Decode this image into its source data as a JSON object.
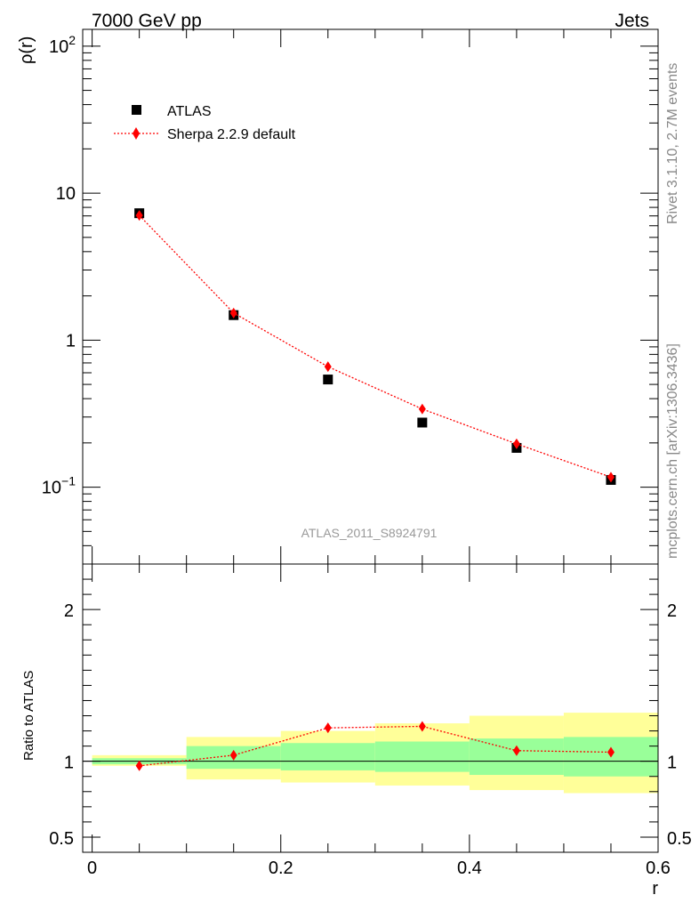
{
  "header": {
    "left_title": "7000 GeV pp",
    "right_title": "Jets",
    "analysis_label": "ATLAS_2011_S8924791",
    "side_label_top": "Rivet 3.1.10,  2.7M events",
    "side_label_bottom": "mcplots.cern.ch [arXiv:1306.3436]"
  },
  "chart_data": [
    {
      "type": "scatter",
      "panel": "main",
      "ylabel": "ρ(r)",
      "xlabel": "",
      "yscale": "log",
      "ylim": [
        0.03,
        130
      ],
      "xlim": [
        -0.01,
        0.6
      ],
      "y_tick_labels": [
        "10",
        "1"
      ],
      "legend_placement": "top-left",
      "series": [
        {
          "name": "ATLAS",
          "marker": "square",
          "color": "#000000",
          "x": [
            0.05,
            0.15,
            0.25,
            0.35,
            0.45,
            0.55
          ],
          "y": [
            7.3,
            1.48,
            0.54,
            0.275,
            0.185,
            0.112
          ]
        },
        {
          "name": "Sherpa 2.2.9 default",
          "marker": "diamond",
          "line": "dotted",
          "color": "#ff0000",
          "x": [
            0.05,
            0.15,
            0.25,
            0.35,
            0.45,
            0.55
          ],
          "y": [
            7.05,
            1.53,
            0.66,
            0.34,
            0.197,
            0.117
          ]
        }
      ]
    },
    {
      "type": "line",
      "panel": "ratio",
      "ylabel": "Ratio to ATLAS",
      "xlabel": "r",
      "ylim": [
        0.4,
        2.3
      ],
      "xlim": [
        -0.01,
        0.6
      ],
      "y_tick_labels": [
        "2",
        "1",
        "0.5"
      ],
      "x_tick_labels": [
        "0",
        "0.2",
        "0.4",
        "0.6"
      ],
      "bins": [
        {
          "x0": 0.0,
          "x1": 0.1,
          "band_green": [
            0.98,
            1.02
          ],
          "band_yellow": [
            0.97,
            1.04
          ]
        },
        {
          "x0": 0.1,
          "x1": 0.2,
          "band_green": [
            0.95,
            1.1
          ],
          "band_yellow": [
            0.88,
            1.16
          ]
        },
        {
          "x0": 0.2,
          "x1": 0.3,
          "band_green": [
            0.94,
            1.12
          ],
          "band_yellow": [
            0.86,
            1.2
          ]
        },
        {
          "x0": 0.3,
          "x1": 0.4,
          "band_green": [
            0.93,
            1.13
          ],
          "band_yellow": [
            0.84,
            1.25
          ]
        },
        {
          "x0": 0.4,
          "x1": 0.5,
          "band_green": [
            0.91,
            1.15
          ],
          "band_yellow": [
            0.81,
            1.3
          ]
        },
        {
          "x0": 0.5,
          "x1": 0.6,
          "band_green": [
            0.9,
            1.16
          ],
          "band_yellow": [
            0.79,
            1.32
          ]
        }
      ],
      "series": [
        {
          "name": "Sherpa 2.2.9 default",
          "marker": "diamond",
          "line": "dotted",
          "color": "#ff0000",
          "x": [
            0.05,
            0.15,
            0.25,
            0.35,
            0.45,
            0.55
          ],
          "y": [
            0.97,
            1.04,
            1.22,
            1.23,
            1.07,
            1.06
          ]
        }
      ],
      "reference_line": 1
    }
  ],
  "colors": {
    "band_green": "#99ff99",
    "band_yellow": "#ffff99",
    "data": "#000000",
    "mc": "#ff0000",
    "side_text": "#888888"
  }
}
